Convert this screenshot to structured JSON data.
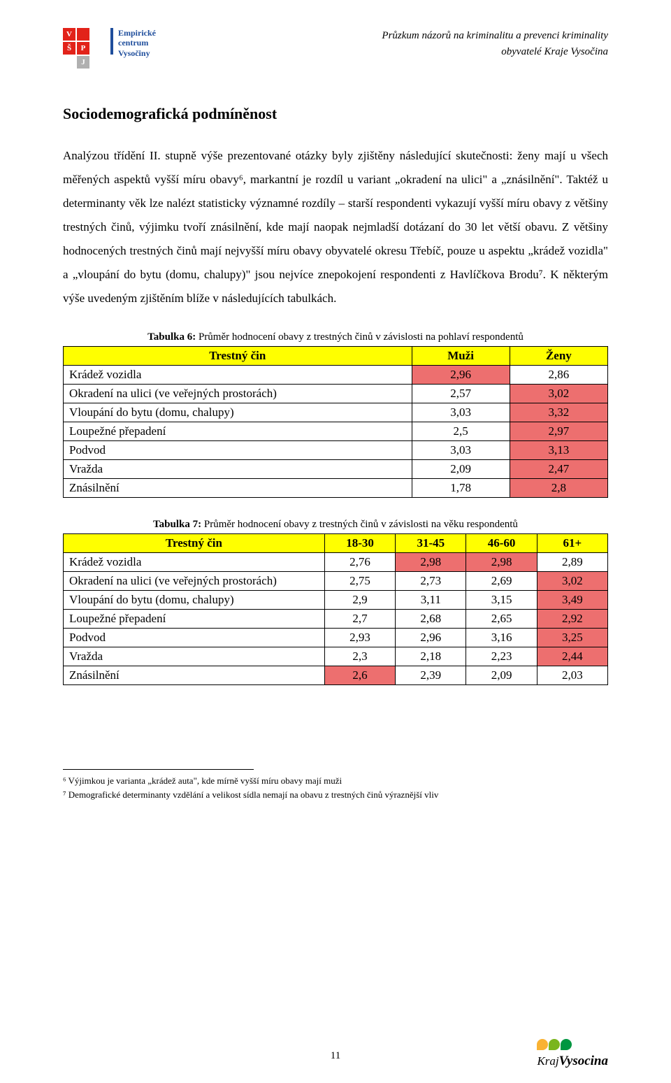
{
  "header": {
    "line1": "Průzkum názorů na kriminalitu a prevenci kriminality",
    "line2": "obyvatelé Kraje Vysočina",
    "logo_text_top": "Empirické",
    "logo_text_mid": "centrum",
    "logo_text_bot": "Vysočiny",
    "logo_colors": {
      "red": "#e2231a",
      "blue": "#1f4e9c",
      "grey": "#b0b0b0"
    }
  },
  "section_title": "Sociodemografická podmíněnost",
  "body_paragraph": "Analýzou třídění II. stupně výše prezentované otázky byly zjištěny následující skutečnosti: ženy mají u všech měřených aspektů vyšší míru obavy⁶, markantní je rozdíl u variant „okradení na ulici\" a „znásilnění\". Taktéž u determinanty věk lze nalézt statisticky významné rozdíly – starší respondenti vykazují vyšší míru obavy z většiny trestných činů, výjimku tvoří znásilnění, kde mají naopak nejmladší dotázaní do 30 let větší obavu. Z většiny hodnocených trestných činů mají nejvyšší míru obavy obyvatelé okresu Třebíč, pouze u aspektu „krádež vozidla\" a „vloupání do bytu (domu, chalupy)\" jsou nejvíce znepokojení respondenti z Havlíčkova Brodu⁷. K některým výše uvedeným zjištěním blíže v následujících tabulkách.",
  "table6": {
    "caption_bold": "Tabulka 6:",
    "caption_rest": " Průměr hodnocení obavy z trestných činů v závislosti na pohlaví respondentů",
    "header_bg": "#ffff00",
    "highlight_bg": "#ed6f6f",
    "columns": [
      "Trestný čin",
      "Muži",
      "Ženy"
    ],
    "col_widths": [
      "64%",
      "18%",
      "18%"
    ],
    "rows": [
      {
        "label": "Krádež vozidla",
        "vals": [
          "2,96",
          "2,86"
        ],
        "hl": [
          true,
          false
        ]
      },
      {
        "label": "Okradení na ulici (ve veřejných prostorách)",
        "vals": [
          "2,57",
          "3,02"
        ],
        "hl": [
          false,
          true
        ]
      },
      {
        "label": "Vloupání do bytu (domu, chalupy)",
        "vals": [
          "3,03",
          "3,32"
        ],
        "hl": [
          false,
          true
        ]
      },
      {
        "label": "Loupežné přepadení",
        "vals": [
          "2,5",
          "2,97"
        ],
        "hl": [
          false,
          true
        ]
      },
      {
        "label": "Podvod",
        "vals": [
          "3,03",
          "3,13"
        ],
        "hl": [
          false,
          true
        ]
      },
      {
        "label": "Vražda",
        "vals": [
          "2,09",
          "2,47"
        ],
        "hl": [
          false,
          true
        ]
      },
      {
        "label": "Znásilnění",
        "vals": [
          "1,78",
          "2,8"
        ],
        "hl": [
          false,
          true
        ]
      }
    ]
  },
  "table7": {
    "caption_bold": "Tabulka 7:",
    "caption_rest": " Průměr hodnocení obavy z trestných činů v závislosti na věku respondentů",
    "header_bg": "#ffff00",
    "highlight_bg": "#ed6f6f",
    "columns": [
      "Trestný čin",
      "18-30",
      "31-45",
      "46-60",
      "61+"
    ],
    "col_widths": [
      "48%",
      "13%",
      "13%",
      "13%",
      "13%"
    ],
    "rows": [
      {
        "label": "Krádež vozidla",
        "vals": [
          "2,76",
          "2,98",
          "2,98",
          "2,89"
        ],
        "hl": [
          false,
          true,
          true,
          false
        ]
      },
      {
        "label": "Okradení na ulici (ve veřejných prostorách)",
        "vals": [
          "2,75",
          "2,73",
          "2,69",
          "3,02"
        ],
        "hl": [
          false,
          false,
          false,
          true
        ]
      },
      {
        "label": "Vloupání do bytu (domu, chalupy)",
        "vals": [
          "2,9",
          "3,11",
          "3,15",
          "3,49"
        ],
        "hl": [
          false,
          false,
          false,
          true
        ]
      },
      {
        "label": "Loupežné přepadení",
        "vals": [
          "2,7",
          "2,68",
          "2,65",
          "2,92"
        ],
        "hl": [
          false,
          false,
          false,
          true
        ]
      },
      {
        "label": "Podvod",
        "vals": [
          "2,93",
          "2,96",
          "3,16",
          "3,25"
        ],
        "hl": [
          false,
          false,
          false,
          true
        ]
      },
      {
        "label": "Vražda",
        "vals": [
          "2,3",
          "2,18",
          "2,23",
          "2,44"
        ],
        "hl": [
          false,
          false,
          false,
          true
        ]
      },
      {
        "label": "Znásilnění",
        "vals": [
          "2,6",
          "2,39",
          "2,09",
          "2,03"
        ],
        "hl": [
          true,
          false,
          false,
          false
        ]
      }
    ]
  },
  "footnotes": [
    "⁶ Výjimkou je varianta „krádež auta\", kde mírně vyšší míru obavy mají muži",
    "⁷ Demografické determinanty vzdělání a velikost sídla nemají na obavu z trestných činů výraznější vliv"
  ],
  "page_number": "11",
  "footer_logo": {
    "text_kraj": "Kraj",
    "text_vys": "Vysocina",
    "leaf_colors": [
      "#f9b233",
      "#7ab51d",
      "#009640"
    ]
  }
}
